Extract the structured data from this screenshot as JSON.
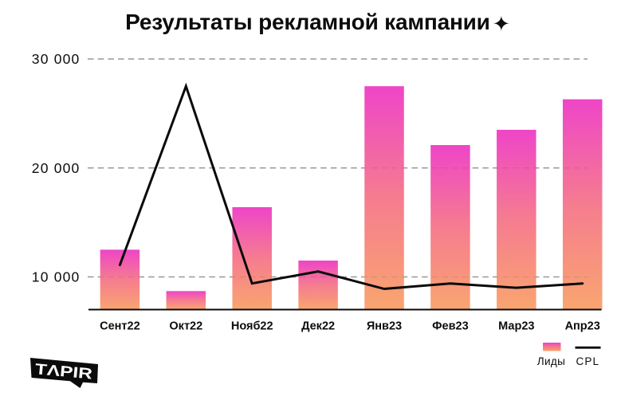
{
  "chart_data": {
    "type": "combo",
    "title": "Результаты рекламной кампании",
    "title_icon": "✦",
    "categories": [
      "Сент22",
      "Окт22",
      "Нояб22",
      "Дек22",
      "Янв23",
      "Фев23",
      "Мар23",
      "Апр23"
    ],
    "series": [
      {
        "name": "Лиды",
        "type": "bar",
        "values": [
          12500,
          8700,
          16400,
          11500,
          27500,
          22100,
          23500,
          26300
        ]
      },
      {
        "name": "CPL",
        "type": "line",
        "values": [
          11100,
          27500,
          9400,
          10500,
          8900,
          9400,
          9000,
          9400
        ]
      }
    ],
    "ylim": [
      7000,
      30500
    ],
    "yticks": [
      10000,
      20000,
      30000
    ],
    "ytick_labels": [
      "10 000",
      "20 000",
      "30 000"
    ],
    "grid": "horizontal-dashed",
    "legend_position": "bottom-right",
    "colors": {
      "bar_gradient_top": "#ee3fc6",
      "bar_gradient_mid": "#f5788c",
      "bar_gradient_bottom": "#f9a26b",
      "line": "#0a0a0a",
      "grid": "#a3a3a3",
      "axis": "#0a0a0a",
      "text": "#0c0c0c",
      "background": "#ffffff"
    }
  },
  "logo": {
    "text": "TΛPIR",
    "bg": "#0b0b0b",
    "fg": "#ffffff"
  }
}
